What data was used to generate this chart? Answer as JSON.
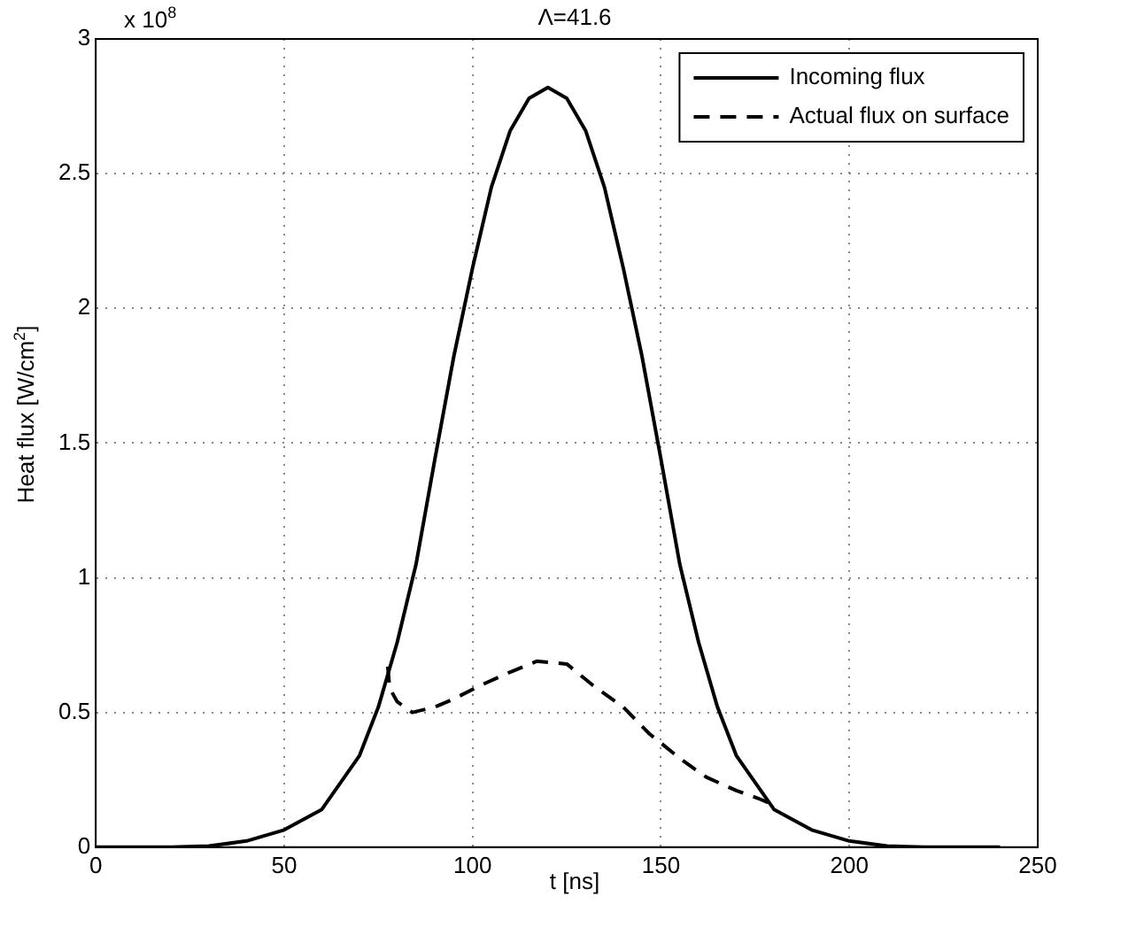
{
  "chart_data": {
    "type": "line",
    "title": "Λ=41.6",
    "xlabel": "t [ns]",
    "ylabel": "Heat flux [W/cm$^{2}$]",
    "annotations": [
      "x 10$^{8}$"
    ],
    "xlim": [
      0,
      250
    ],
    "xticks": [
      0,
      50,
      100,
      150,
      200,
      250
    ],
    "ylim": [
      0,
      3
    ],
    "yticks": [
      0,
      0.5,
      1,
      1.5,
      2,
      2.5,
      3
    ],
    "grid": true,
    "legend": "top right",
    "marker": "none",
    "series": [
      {
        "name": "Incoming flux",
        "color": "#000000",
        "line_style": "solid",
        "x": [
          0,
          20,
          30,
          40,
          50,
          60,
          70,
          75,
          80,
          85,
          90,
          95,
          100,
          105,
          110,
          115,
          120,
          125,
          130,
          135,
          140,
          145,
          150,
          155,
          160,
          165,
          170,
          180,
          190,
          200,
          210,
          220,
          240
        ],
        "values": [
          0,
          0,
          0.004,
          0.023,
          0.064,
          0.14,
          0.34,
          0.52,
          0.76,
          1.05,
          1.44,
          1.82,
          2.15,
          2.45,
          2.66,
          2.78,
          2.82,
          2.78,
          2.66,
          2.45,
          2.15,
          1.82,
          1.44,
          1.05,
          0.76,
          0.52,
          0.34,
          0.14,
          0.064,
          0.023,
          0.004,
          0,
          0
        ]
      },
      {
        "name": "Actual flux on surface",
        "color": "#000000",
        "line_style": "dashed",
        "x": [
          77.5,
          78,
          80,
          84,
          90,
          95,
          102,
          110,
          117,
          125,
          132,
          140,
          147,
          155,
          162,
          170,
          176,
          181
        ],
        "values": [
          0.67,
          0.59,
          0.54,
          0.5,
          0.52,
          0.55,
          0.6,
          0.65,
          0.69,
          0.68,
          0.6,
          0.52,
          0.42,
          0.33,
          0.26,
          0.21,
          0.18,
          0.15
        ]
      }
    ]
  }
}
